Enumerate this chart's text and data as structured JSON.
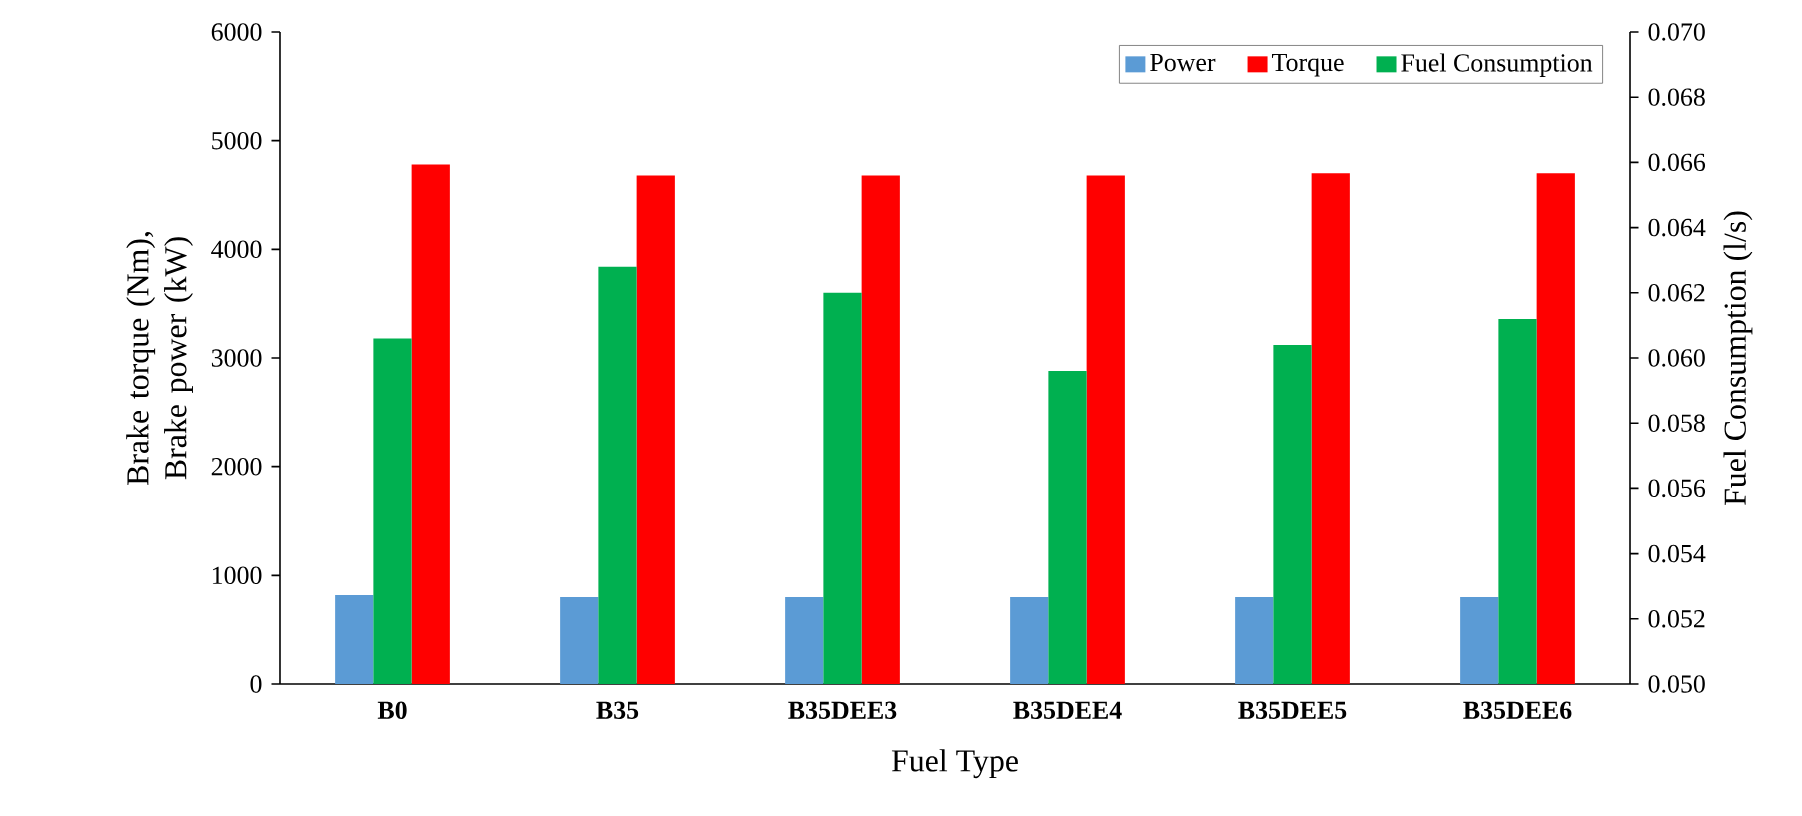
{
  "chart_data": {
    "type": "bar",
    "xlabel": "Fuel Type",
    "ylabel": "Brake torque (Nm), Brake power (kW)",
    "y2label": "Fuel Consumption (l/s)",
    "categories": [
      "B0",
      "B35",
      "B35DEE3",
      "B35DEE4",
      "B35DEE5",
      "B35DEE6"
    ],
    "series": [
      {
        "name": "Power",
        "color": "#5b9bd5",
        "values": [
          820,
          800,
          800,
          800,
          800,
          800
        ]
      },
      {
        "name": "Torque",
        "color": "#ff0000",
        "values": [
          4780,
          4680,
          4680,
          4680,
          4700,
          4700
        ]
      },
      {
        "name": "Fuel Consumption",
        "color": "#00b050",
        "axis": "y2",
        "values": [
          0.0606,
          0.0628,
          0.062,
          0.0596,
          0.0604,
          0.0612
        ]
      }
    ],
    "ylim": [
      0,
      6000
    ],
    "yticks": [
      0,
      1000,
      2000,
      3000,
      4000,
      5000,
      6000
    ],
    "y2lim": [
      0.05,
      0.07
    ],
    "y2ticks": [
      {
        "value": 0.05,
        "label": "0.050"
      },
      {
        "value": 0.052,
        "label": "0.052"
      },
      {
        "value": 0.054,
        "label": "0.054"
      },
      {
        "value": 0.056,
        "label": "0.056"
      },
      {
        "value": 0.058,
        "label": "0.058"
      },
      {
        "value": 0.06,
        "label": "0.060"
      },
      {
        "value": 0.062,
        "label": "0.062"
      },
      {
        "value": 0.064,
        "label": "0.064"
      },
      {
        "value": 0.066,
        "label": "0.066"
      },
      {
        "value": 0.068,
        "label": "0.068"
      },
      {
        "value": 0.07,
        "label": "0.070"
      }
    ],
    "legend": "top right",
    "grid": false
  }
}
